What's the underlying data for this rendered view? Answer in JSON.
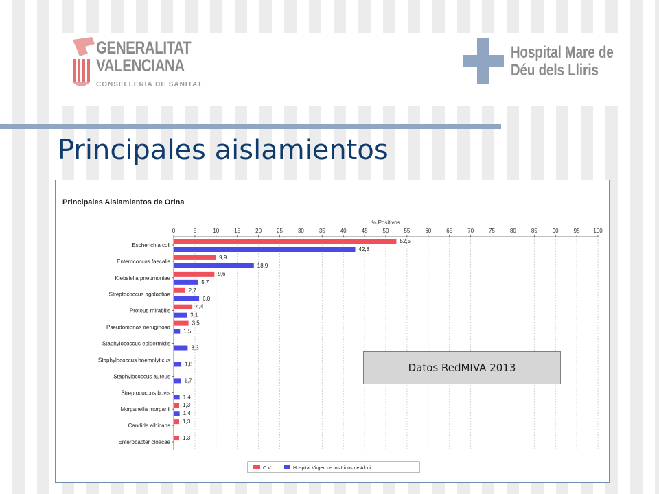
{
  "header": {
    "left_logo": {
      "line1": "GENERALITAT",
      "line2": "VALENCIANA",
      "line3": "CONSELLERIA DE SANITAT",
      "icon": "generalitat-emblem-icon",
      "color": "#8a8a8a"
    },
    "right_logo": {
      "line1": "Hospital Mare de",
      "line2": "Déu dels Lliris",
      "icon": "hospital-cross-icon",
      "cross_color": "#8fa5c1"
    }
  },
  "slide": {
    "title": "Principales aislamientos",
    "title_color": "#0f3b6e",
    "accent_bar_color": "#8fa5c1"
  },
  "note": {
    "text": "Datos RedMIVA 2013"
  },
  "chart_data": {
    "type": "bar",
    "orientation": "horizontal",
    "title": "Principales Aislamientos  de Orina",
    "xlabel": "% Positivos",
    "ylabel": "",
    "xlim": [
      0,
      100
    ],
    "xticks": [
      0,
      5,
      10,
      15,
      20,
      25,
      30,
      35,
      40,
      45,
      50,
      55,
      60,
      65,
      70,
      75,
      80,
      85,
      90,
      95,
      100
    ],
    "grid": true,
    "legend": "bottom-center",
    "categories": [
      "Escherichia coli",
      "Enterococcus faecalis",
      "Klebsiella pneumoniae",
      "Streptococcus agalactiae",
      "Proteus mirabilis",
      "Pseudomonas aeruginosa",
      "Staphylococcus epidermidis",
      "Staphylococcus haemolyticus",
      "Staphylococcus aureus",
      "Streptococcus bovis",
      "Morganella morganii",
      "Candida albicans",
      "Enterobacter cloacae"
    ],
    "series": [
      {
        "name": "C.V.",
        "color": "#f0505a",
        "values": [
          52.5,
          9.9,
          9.6,
          2.7,
          4.4,
          3.5,
          null,
          null,
          null,
          null,
          1.3,
          1.3,
          1.3
        ]
      },
      {
        "name": "Hospital Virgen de los Lirios de Alcoi",
        "color": "#4a4ae6",
        "values": [
          42.8,
          18.9,
          5.7,
          6.0,
          3.1,
          1.5,
          3.3,
          1.8,
          1.7,
          1.4,
          1.4,
          null,
          null
        ]
      }
    ],
    "value_labels": [
      [
        "52,5",
        "42,8"
      ],
      [
        "9,9",
        "18,9"
      ],
      [
        "9,6",
        "5,7"
      ],
      [
        "2,7",
        "6,0"
      ],
      [
        "4,4",
        "3,1"
      ],
      [
        "3,5",
        "1,5"
      ],
      [
        "",
        "3,3"
      ],
      [
        "",
        "1,8"
      ],
      [
        "",
        "1,7"
      ],
      [
        "",
        "1,4"
      ],
      [
        "1,3",
        "1,4"
      ],
      [
        "1,3",
        ""
      ],
      [
        "1,3",
        ""
      ]
    ]
  }
}
